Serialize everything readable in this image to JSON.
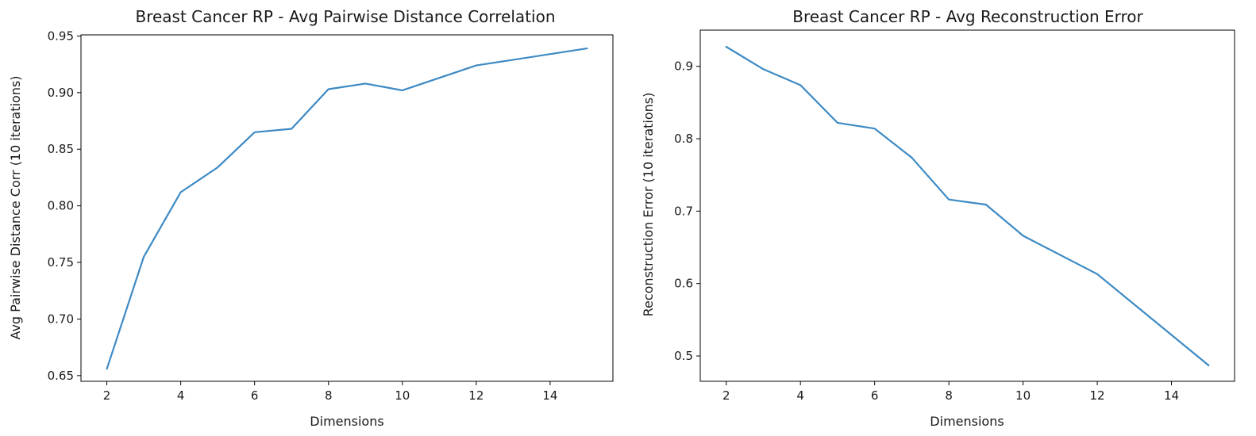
{
  "colors": {
    "series": "#3d8ac4",
    "axes": "#000000",
    "background": "#ffffff"
  },
  "chart_data": [
    {
      "type": "line",
      "title": "Breast Cancer RP - Avg Pairwise Distance Correlation",
      "xlabel": "Dimensions",
      "ylabel": "Avg Pairwise Distance Corr (10 iterations)",
      "x": [
        2,
        3,
        4,
        5,
        6,
        7,
        8,
        9,
        10,
        12,
        15
      ],
      "series": [
        {
          "values": [
            0.656,
            0.755,
            0.812,
            0.834,
            0.865,
            0.868,
            0.903,
            0.908,
            0.902,
            0.924,
            0.939
          ]
        }
      ],
      "xlim": [
        1.3,
        15.7
      ],
      "ylim": [
        0.645,
        0.951
      ],
      "xticks": [
        2,
        4,
        6,
        8,
        10,
        12,
        14
      ],
      "xtick_labels": [
        "2",
        "4",
        "6",
        "8",
        "10",
        "12",
        "14"
      ],
      "yticks": [
        0.65,
        0.7,
        0.75,
        0.8,
        0.85,
        0.9,
        0.95
      ],
      "ytick_labels": [
        "0.65",
        "0.70",
        "0.75",
        "0.80",
        "0.85",
        "0.90",
        "0.95"
      ],
      "grid": false,
      "legend": "none"
    },
    {
      "type": "line",
      "title": "Breast Cancer RP - Avg Reconstruction Error",
      "xlabel": "Dimensions",
      "ylabel": "Reconstruction Error (10 iterations)",
      "x": [
        2,
        3,
        4,
        5,
        6,
        7,
        8,
        9,
        10,
        12,
        15
      ],
      "series": [
        {
          "values": [
            0.927,
            0.896,
            0.874,
            0.822,
            0.814,
            0.774,
            0.716,
            0.709,
            0.666,
            0.613,
            0.487
          ]
        }
      ],
      "xlim": [
        1.3,
        15.7
      ],
      "ylim": [
        0.465,
        0.95
      ],
      "xticks": [
        2,
        4,
        6,
        8,
        10,
        12,
        14
      ],
      "xtick_labels": [
        "2",
        "4",
        "6",
        "8",
        "10",
        "12",
        "14"
      ],
      "yticks": [
        0.5,
        0.6,
        0.7,
        0.8,
        0.9
      ],
      "ytick_labels": [
        "0.5",
        "0.6",
        "0.7",
        "0.8",
        "0.9"
      ],
      "grid": false,
      "legend": "none"
    }
  ]
}
